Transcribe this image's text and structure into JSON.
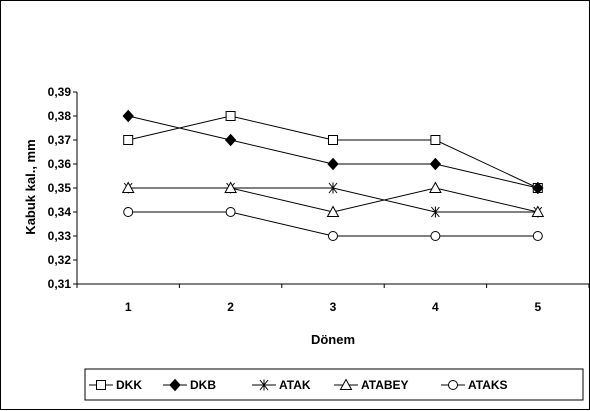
{
  "chart_data": {
    "type": "line",
    "title": "",
    "xlabel": "Dönem",
    "ylabel": "Kabuk kal., mm",
    "categories": [
      "1",
      "2",
      "3",
      "4",
      "5"
    ],
    "y_ticks": [
      "0,31",
      "0,32",
      "0,33",
      "0,34",
      "0,35",
      "0,36",
      "0,37",
      "0,38",
      "0,39"
    ],
    "ylim": [
      0.31,
      0.39
    ],
    "grid": false,
    "legend_position": "bottom",
    "series": [
      {
        "name": "DKK",
        "marker": "square-open",
        "values": [
          0.37,
          0.38,
          0.37,
          0.37,
          0.35
        ]
      },
      {
        "name": "DKB",
        "marker": "diamond-filled",
        "values": [
          0.38,
          0.37,
          0.36,
          0.36,
          0.35
        ]
      },
      {
        "name": "ATAK",
        "marker": "asterisk",
        "values": [
          0.35,
          0.35,
          0.35,
          0.34,
          0.34
        ]
      },
      {
        "name": "ATABEY",
        "marker": "triangle-open",
        "values": [
          0.35,
          0.35,
          0.34,
          0.35,
          0.34
        ]
      },
      {
        "name": "ATAKS",
        "marker": "circle-open",
        "values": [
          0.34,
          0.34,
          0.33,
          0.33,
          0.33
        ]
      }
    ]
  }
}
